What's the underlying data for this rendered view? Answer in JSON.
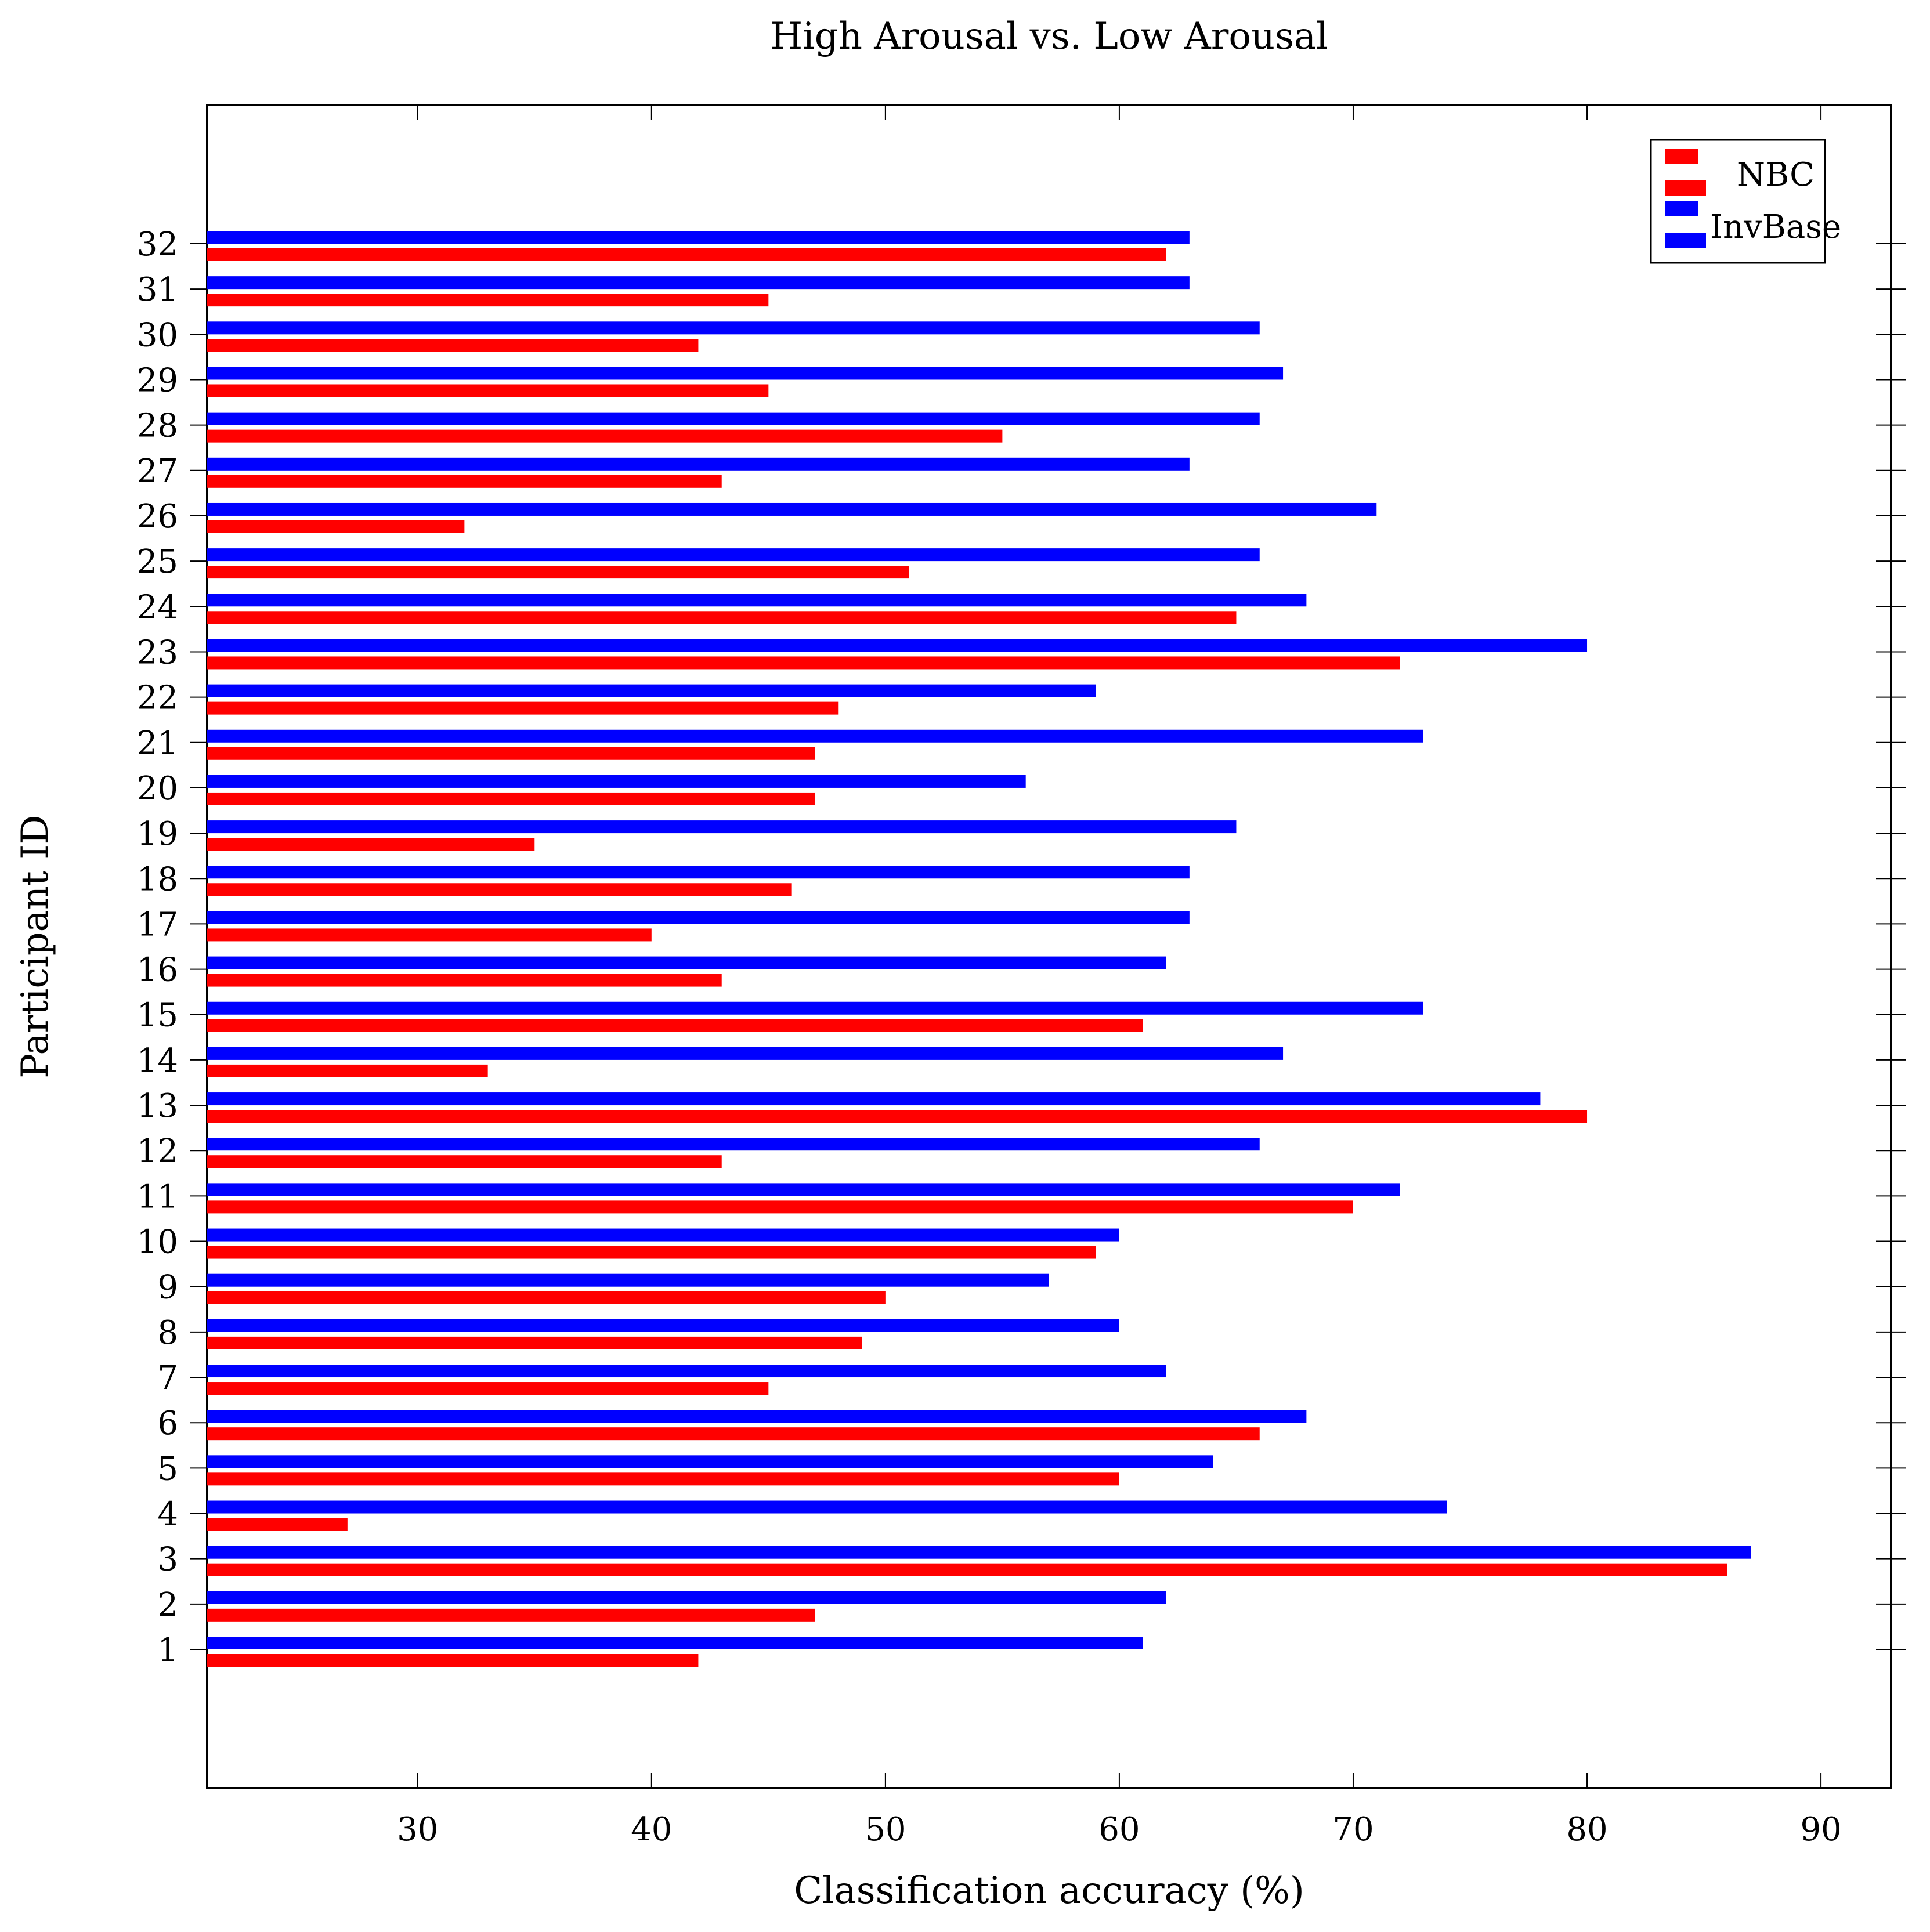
{
  "chart_data": {
    "type": "bar",
    "orientation": "horizontal",
    "title": "High Arousal vs. Low Arousal",
    "xlabel": "Classification accuracy (%)",
    "ylabel": "Participant ID",
    "xlim": [
      21,
      93
    ],
    "xticks": [
      30,
      40,
      50,
      60,
      70,
      80,
      90
    ],
    "categories": [
      "1",
      "2",
      "3",
      "4",
      "5",
      "6",
      "7",
      "8",
      "9",
      "10",
      "11",
      "12",
      "13",
      "14",
      "15",
      "16",
      "17",
      "18",
      "19",
      "20",
      "21",
      "22",
      "23",
      "24",
      "25",
      "26",
      "27",
      "28",
      "29",
      "30",
      "31",
      "32"
    ],
    "series": [
      {
        "name": "NBC",
        "color": "#ff0000",
        "values": [
          42,
          47,
          86,
          27,
          60,
          66,
          45,
          49,
          50,
          59,
          70,
          43,
          80,
          33,
          61,
          43,
          40,
          46,
          35,
          47,
          47,
          48,
          72,
          65,
          51,
          32,
          43,
          55,
          45,
          42,
          45,
          62
        ]
      },
      {
        "name": "InvBase",
        "color": "#0000ff",
        "values": [
          61,
          62,
          87,
          74,
          64,
          68,
          62,
          60,
          57,
          60,
          72,
          66,
          78,
          67,
          73,
          62,
          63,
          63,
          65,
          56,
          73,
          59,
          80,
          68,
          66,
          71,
          63,
          66,
          67,
          66,
          63,
          63
        ]
      }
    ],
    "legend_position": "top-right",
    "grid": false
  }
}
